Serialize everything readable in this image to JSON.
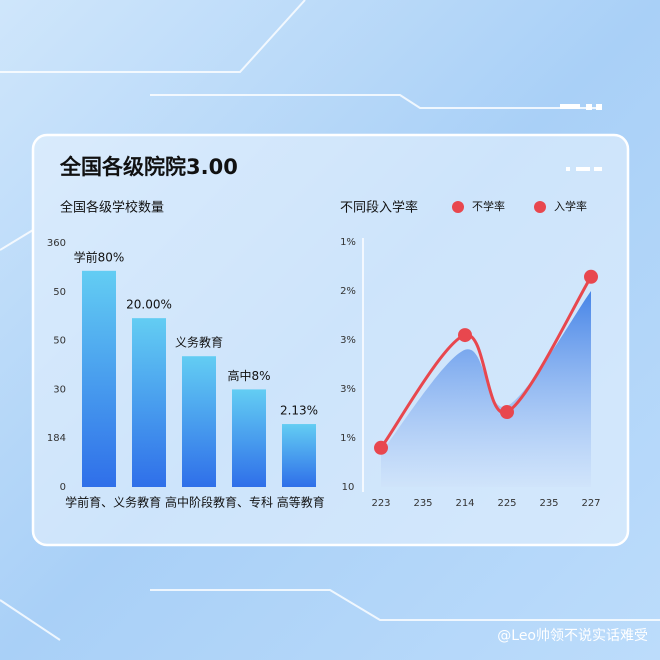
{
  "header": {
    "title": "全国各级院院3.00"
  },
  "watermark": "@Leo帅领不说实话难受",
  "chart_data": [
    {
      "type": "bar",
      "title": "全国各级学校数量",
      "categories": [
        null,
        null,
        null,
        null,
        null
      ],
      "values": [
        4.43,
        3.46,
        2.68,
        2.0,
        1.29
      ],
      "bar_labels": [
        "学前80%",
        "20.00%",
        "义务教育",
        "高中8%",
        "2.13%"
      ],
      "x_label": "学前育、义务教育 高中阶段教育、专科 高等教育",
      "ylim": [
        0,
        5
      ],
      "yticks": [
        {
          "value": 0,
          "label": "0"
        },
        {
          "value": 1,
          "label": "184"
        },
        {
          "value": 2,
          "label": "30"
        },
        {
          "value": 3,
          "label": "50"
        },
        {
          "value": 4,
          "label": "50"
        },
        {
          "value": 5,
          "label": "360"
        }
      ],
      "color": [
        "#63cdf3",
        "#2f6fe9"
      ]
    },
    {
      "type": "line",
      "title": "不同段入学率",
      "xlim": [
        0,
        5
      ],
      "xticks": [
        {
          "value": 0,
          "label": "223"
        },
        {
          "value": 1,
          "label": "235"
        },
        {
          "value": 2,
          "label": "214"
        },
        {
          "value": 3,
          "label": "225"
        },
        {
          "value": 4,
          "label": "235"
        },
        {
          "value": 5,
          "label": "227"
        }
      ],
      "ylim": [
        0,
        5
      ],
      "yticks": [
        {
          "value": 0,
          "label": "10"
        },
        {
          "value": 1,
          "label": "1%"
        },
        {
          "value": 2,
          "label": "3%"
        },
        {
          "value": 3,
          "label": "3%"
        },
        {
          "value": 4,
          "label": "2%"
        },
        {
          "value": 5,
          "label": "1%"
        }
      ],
      "series": [
        {
          "name": "不学率",
          "color": "#3f7fe6",
          "kind": "area",
          "x": [
            0,
            2,
            3,
            5
          ],
          "values": [
            0.7,
            2.8,
            1.65,
            4.0
          ]
        },
        {
          "name": "入学率",
          "color": "#e8474e",
          "kind": "line",
          "x": [
            0,
            2,
            3,
            5
          ],
          "values": [
            0.8,
            3.1,
            1.53,
            4.29
          ]
        }
      ]
    }
  ]
}
